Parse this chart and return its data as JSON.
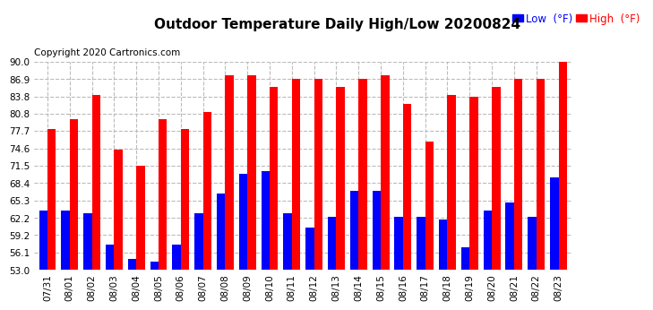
{
  "title": "Outdoor Temperature Daily High/Low 20200824",
  "copyright": "Copyright 2020 Cartronics.com",
  "legend_low": "Low",
  "legend_high": "High",
  "legend_unit": "(°F)",
  "dates": [
    "07/31",
    "08/01",
    "08/02",
    "08/03",
    "08/04",
    "08/05",
    "08/06",
    "08/07",
    "08/08",
    "08/09",
    "08/10",
    "08/11",
    "08/12",
    "08/13",
    "08/14",
    "08/15",
    "08/16",
    "08/17",
    "08/18",
    "08/19",
    "08/20",
    "08/21",
    "08/22",
    "08/23"
  ],
  "highs": [
    78.0,
    79.8,
    84.0,
    74.4,
    71.5,
    79.8,
    78.0,
    81.0,
    87.5,
    87.5,
    85.5,
    87.0,
    87.0,
    85.5,
    87.0,
    87.5,
    82.5,
    75.8,
    84.0,
    83.8,
    85.5,
    87.0,
    87.0,
    90.0
  ],
  "lows": [
    63.5,
    63.5,
    63.0,
    57.5,
    55.0,
    54.5,
    57.5,
    63.0,
    66.5,
    70.0,
    70.5,
    63.0,
    60.5,
    62.5,
    67.0,
    67.0,
    62.5,
    62.5,
    62.0,
    57.0,
    63.5,
    65.0,
    62.5,
    69.5
  ],
  "ylim_min": 53.0,
  "ylim_max": 90.0,
  "yticks": [
    53.0,
    56.1,
    59.2,
    62.2,
    65.3,
    68.4,
    71.5,
    74.6,
    77.7,
    80.8,
    83.8,
    86.9,
    90.0
  ],
  "bar_width": 0.38,
  "high_color": "#ff0000",
  "low_color": "#0000ff",
  "bg_color": "#ffffff",
  "grid_color": "#bbbbbb",
  "title_fontsize": 11,
  "tick_fontsize": 7.5,
  "copyright_fontsize": 7.5
}
